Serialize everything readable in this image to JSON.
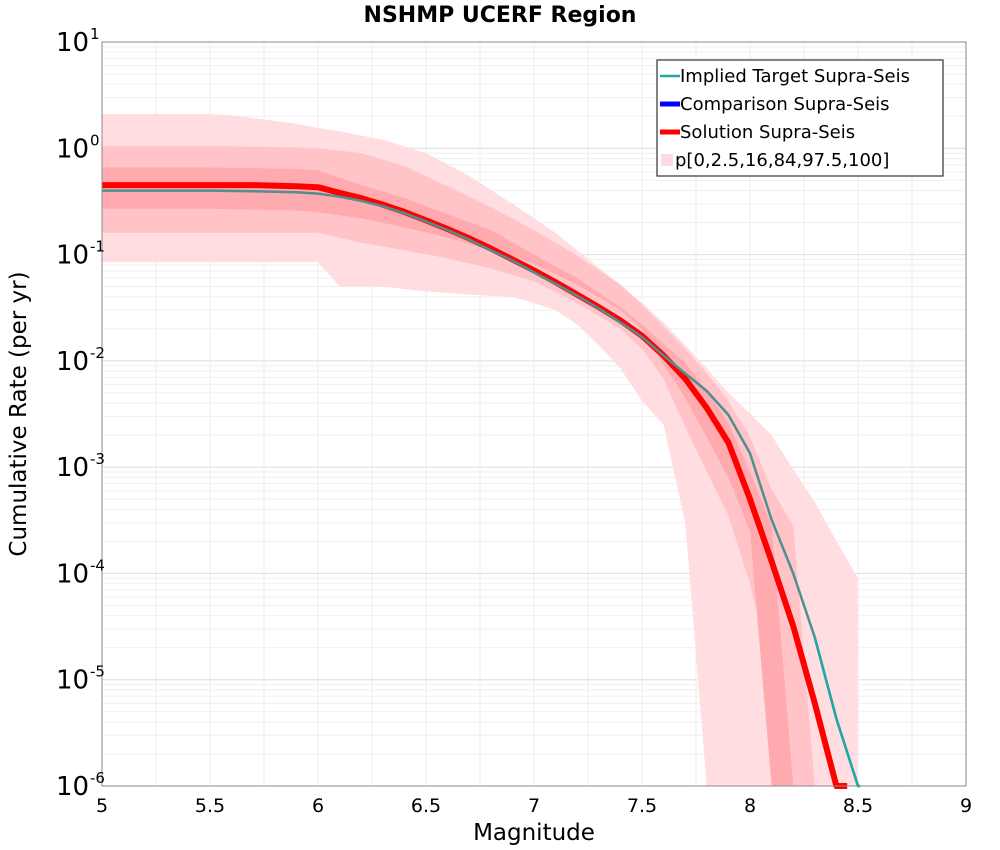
{
  "chart_data": {
    "type": "line",
    "title": "NSHMP UCERF Region",
    "xlabel": "Magnitude",
    "ylabel": "Cumulative Rate (per yr)",
    "xlim": [
      5,
      9
    ],
    "ylim": [
      1e-06,
      10
    ],
    "yscale": "log",
    "grid": true,
    "legend_position": "top-right",
    "x_ticks": [
      "5",
      "5.5",
      "6",
      "6.5",
      "7",
      "7.5",
      "8",
      "8.5",
      "9"
    ],
    "y_ticks": [
      {
        "base": "10",
        "exp": "1"
      },
      {
        "base": "10",
        "exp": "0"
      },
      {
        "base": "10",
        "exp": "-1"
      },
      {
        "base": "10",
        "exp": "-2"
      },
      {
        "base": "10",
        "exp": "-3"
      },
      {
        "base": "10",
        "exp": "-4"
      },
      {
        "base": "10",
        "exp": "-5"
      },
      {
        "base": "10",
        "exp": "-6"
      }
    ],
    "legend": [
      {
        "label": "Implied Target Supra-Seis",
        "color": "#20a8a8"
      },
      {
        "label": "Comparison Supra-Seis",
        "color": "#0000ff"
      },
      {
        "label": "Solution Supra-Seis",
        "color": "#ff0000"
      },
      {
        "label": "p[0,2.5,16,84,97.5,100]",
        "color": "#ffd9dd"
      }
    ],
    "series": [
      {
        "name": "Implied Target Supra-Seis",
        "color": "#20a8a8",
        "x": [
          5.0,
          5.5,
          5.7,
          5.9,
          6.0,
          6.1,
          6.2,
          6.3,
          6.4,
          6.5,
          6.6,
          6.7,
          6.8,
          6.9,
          7.0,
          7.1,
          7.2,
          7.3,
          7.4,
          7.5,
          7.6,
          7.7,
          7.8,
          7.9,
          8.0,
          8.1,
          8.2,
          8.3,
          8.4,
          8.5,
          8.51
        ],
        "y": [
          0.4,
          0.4,
          0.395,
          0.385,
          0.375,
          0.35,
          0.32,
          0.285,
          0.245,
          0.205,
          0.17,
          0.138,
          0.11,
          0.088,
          0.068,
          0.053,
          0.041,
          0.031,
          0.023,
          0.0168,
          0.0112,
          0.0076,
          0.0052,
          0.0031,
          0.00135,
          0.00032,
          0.0001,
          2.5e-05,
          4.3e-06,
          1e-06,
          1e-06
        ]
      },
      {
        "name": "Comparison Supra-Seis",
        "color": "#0000ff",
        "x": [
          5.0,
          5.5,
          5.7,
          5.9,
          6.0,
          6.1,
          6.2,
          6.3,
          6.4,
          6.5,
          6.6,
          6.7,
          6.8,
          6.9,
          7.0,
          7.1,
          7.2,
          7.3,
          7.4,
          7.5,
          7.6,
          7.7,
          7.8,
          7.9,
          8.0,
          8.1,
          8.2,
          8.3,
          8.4,
          8.45
        ],
        "y": [
          0.45,
          0.45,
          0.45,
          0.44,
          0.43,
          0.38,
          0.34,
          0.295,
          0.252,
          0.21,
          0.174,
          0.142,
          0.114,
          0.09,
          0.071,
          0.055,
          0.042,
          0.032,
          0.024,
          0.0172,
          0.0112,
          0.0068,
          0.0036,
          0.0017,
          0.0005,
          0.00013,
          3.2e-05,
          6e-06,
          1e-06,
          1e-06
        ]
      },
      {
        "name": "Solution Supra-Seis",
        "color": "#ff0000",
        "x": [
          5.0,
          5.5,
          5.7,
          5.9,
          6.0,
          6.1,
          6.2,
          6.3,
          6.4,
          6.5,
          6.6,
          6.7,
          6.8,
          6.9,
          7.0,
          7.1,
          7.2,
          7.3,
          7.4,
          7.5,
          7.6,
          7.7,
          7.8,
          7.9,
          8.0,
          8.1,
          8.2,
          8.3,
          8.4,
          8.45
        ],
        "y": [
          0.45,
          0.45,
          0.45,
          0.44,
          0.43,
          0.38,
          0.34,
          0.295,
          0.252,
          0.21,
          0.174,
          0.142,
          0.114,
          0.09,
          0.071,
          0.055,
          0.042,
          0.032,
          0.024,
          0.0172,
          0.0112,
          0.0068,
          0.0036,
          0.0017,
          0.0005,
          0.00013,
          3.2e-05,
          6e-06,
          1e-06,
          1e-06
        ]
      }
    ],
    "bands": [
      {
        "name": "p0-p100",
        "color": "#ffdde0",
        "x": [
          5.0,
          5.5,
          5.6,
          5.9,
          6.0,
          6.1,
          6.3,
          6.5,
          6.7,
          6.9,
          7.0,
          7.1,
          7.2,
          7.3,
          7.4,
          7.5,
          7.6,
          7.7,
          7.8,
          7.85,
          7.9,
          8.0,
          8.1,
          8.2,
          8.3,
          8.4,
          8.5
        ],
        "upper": [
          2.1,
          2.1,
          2.05,
          1.7,
          1.55,
          1.45,
          1.2,
          0.9,
          0.55,
          0.3,
          0.22,
          0.16,
          0.11,
          0.075,
          0.052,
          0.035,
          0.023,
          0.014,
          0.0085,
          0.0065,
          0.005,
          0.0032,
          0.002,
          0.00095,
          0.00047,
          0.0002,
          9e-05
        ],
        "lower": [
          0.085,
          0.085,
          0.085,
          0.085,
          0.085,
          0.05,
          0.05,
          0.045,
          0.042,
          0.04,
          0.035,
          0.03,
          0.022,
          0.014,
          0.0085,
          0.0042,
          0.0025,
          0.0003,
          1e-06,
          1e-06,
          1e-06,
          1e-06,
          1e-06,
          1e-06,
          1e-06,
          1e-06,
          1e-06
        ]
      },
      {
        "name": "p2.5-p97.5",
        "color": "#ffc3c8",
        "x": [
          5.0,
          5.5,
          5.9,
          6.0,
          6.2,
          6.4,
          6.6,
          6.8,
          7.0,
          7.2,
          7.4,
          7.5,
          7.6,
          7.7,
          7.8,
          7.9,
          8.0,
          8.1,
          8.2,
          8.3
        ],
        "upper": [
          1.05,
          1.05,
          1.02,
          1.0,
          0.9,
          0.68,
          0.44,
          0.28,
          0.17,
          0.098,
          0.052,
          0.034,
          0.021,
          0.013,
          0.0076,
          0.0042,
          0.0019,
          0.00062,
          0.00028,
          1e-06
        ],
        "lower": [
          0.16,
          0.16,
          0.16,
          0.16,
          0.13,
          0.11,
          0.092,
          0.074,
          0.056,
          0.035,
          0.02,
          0.013,
          0.0067,
          0.0024,
          0.0009,
          0.00035,
          8e-05,
          1.2e-05,
          1e-06,
          1e-06
        ]
      },
      {
        "name": "p16-p84",
        "color": "#ffaaae",
        "x": [
          5.0,
          5.5,
          5.9,
          6.0,
          6.2,
          6.4,
          6.6,
          6.8,
          7.0,
          7.2,
          7.4,
          7.5,
          7.6,
          7.7,
          7.8,
          7.9,
          8.0,
          8.1,
          8.2
        ],
        "upper": [
          0.66,
          0.66,
          0.64,
          0.62,
          0.45,
          0.34,
          0.24,
          0.17,
          0.1,
          0.06,
          0.032,
          0.022,
          0.0145,
          0.0096,
          0.0052,
          0.0026,
          0.0009,
          0.00028,
          1e-06
        ],
        "lower": [
          0.27,
          0.27,
          0.26,
          0.25,
          0.22,
          0.18,
          0.145,
          0.109,
          0.082,
          0.052,
          0.03,
          0.02,
          0.0092,
          0.0045,
          0.0019,
          0.0008,
          0.00025,
          1e-06,
          1e-06
        ]
      }
    ]
  }
}
